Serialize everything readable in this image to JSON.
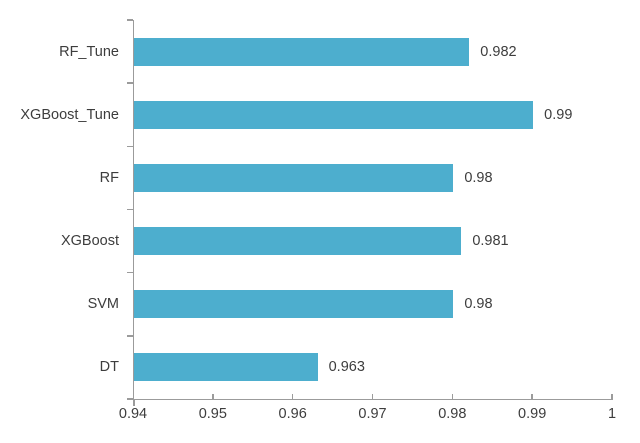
{
  "chart_data": {
    "type": "bar",
    "orientation": "horizontal",
    "title": "",
    "xlabel": "",
    "ylabel": "",
    "categories": [
      "RF_Tune",
      "XGBoost_Tune",
      "RF",
      "XGBoost",
      "SVM",
      "DT"
    ],
    "values": [
      0.982,
      0.99,
      0.98,
      0.981,
      0.98,
      0.963
    ],
    "value_labels": [
      "0.982",
      "0.99",
      "0.98",
      "0.981",
      "0.98",
      "0.963"
    ],
    "xlim": [
      0.94,
      1.0
    ],
    "x_tick_values": [
      0.94,
      0.95,
      0.96,
      0.97,
      0.98,
      0.99,
      1.0
    ],
    "x_tick_labels": [
      "0.94",
      "0.95",
      "0.96",
      "0.97",
      "0.98",
      "0.99",
      "1"
    ],
    "grid": false,
    "legend": false,
    "bar_color": "#4daece",
    "axis_color": "#9b9b9b",
    "text_color": "#3d3d3d",
    "background_color": "#ffffff"
  }
}
